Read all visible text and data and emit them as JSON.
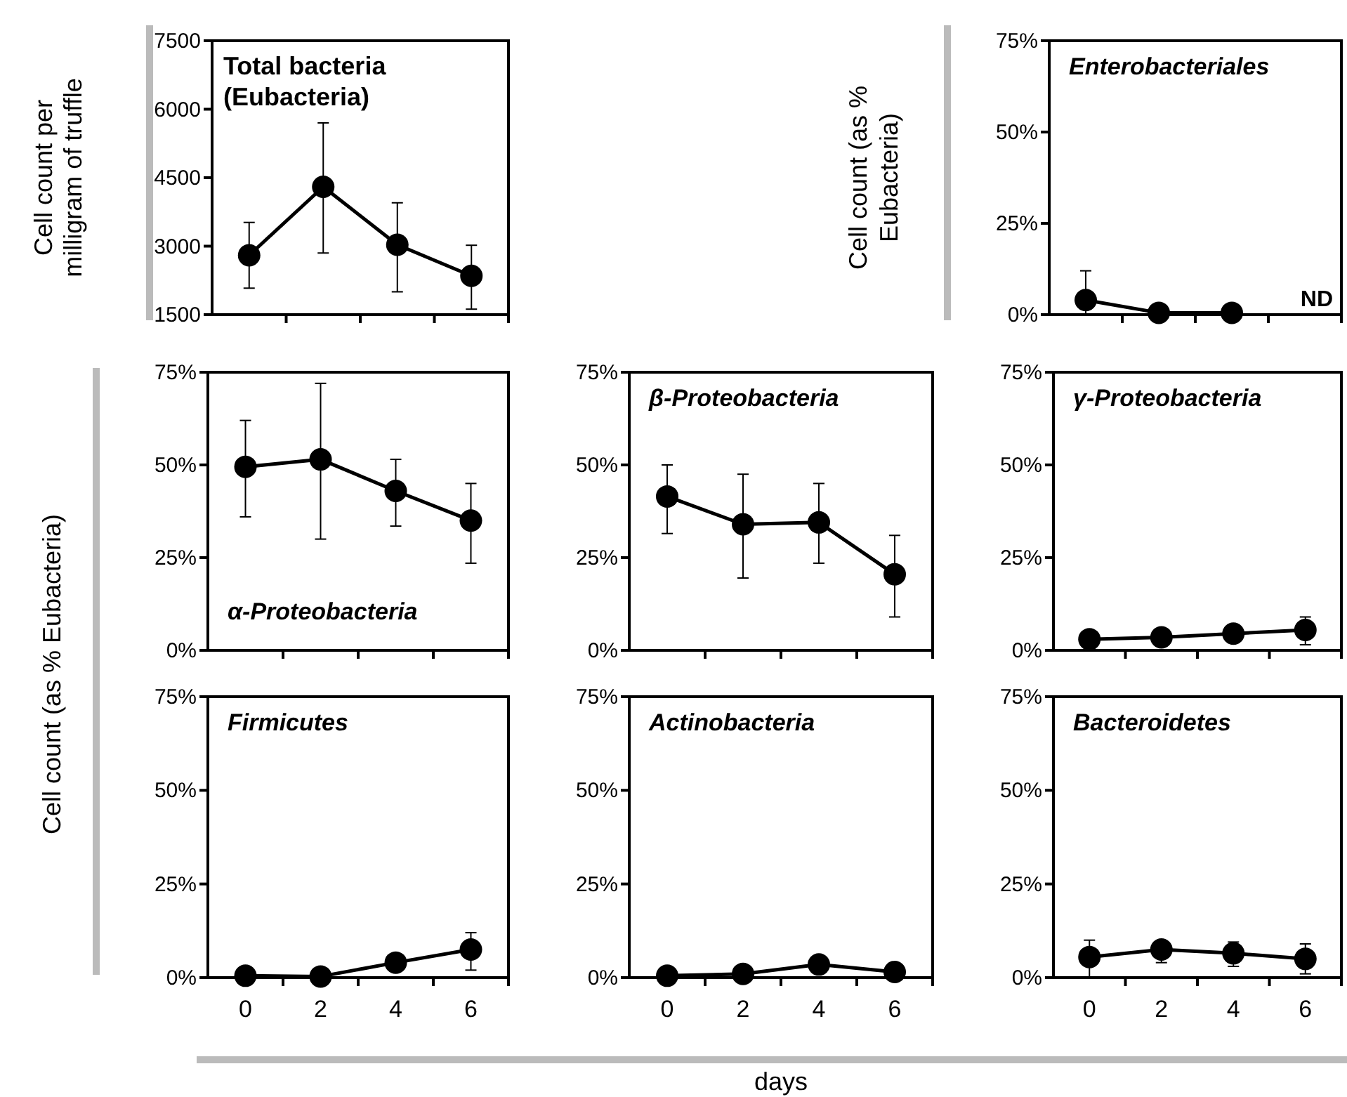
{
  "chart_data": [
    {
      "type": "line",
      "title": "Total bacteria\n(Eubacteria)",
      "ylabel": "Cell count per\nmilligram of truffle",
      "categories": [
        "0",
        "2",
        "4",
        "6"
      ],
      "series": [
        {
          "color": "#000000",
          "values": [
            2800,
            4300,
            3030,
            2350
          ],
          "errors": [
            [
              2080,
              3520
            ],
            [
              2850,
              5700
            ],
            [
              2000,
              3950
            ],
            [
              1620,
              3020
            ]
          ]
        }
      ],
      "ylim": [
        1500,
        7500
      ],
      "yticks": [
        1500,
        3000,
        4500,
        6000,
        7500
      ],
      "tick_labels": "y",
      "marker": "circle",
      "line_style": "solid",
      "grid": false
    },
    {
      "type": "line",
      "title": "Enterobacteriales",
      "ylabel": "Cell count (as %\nEubacteria)",
      "categories": [
        "0",
        "2",
        "4",
        "6"
      ],
      "series": [
        {
          "color": "#000000",
          "values": [
            4,
            0.5,
            0.5,
            null
          ],
          "errors": [
            [
              0,
              12
            ],
            null,
            null,
            null
          ]
        }
      ],
      "annotations": [
        "ND"
      ],
      "ylim": [
        0,
        75
      ],
      "yticks": [
        {
          "value": 0,
          "label": "0%"
        },
        {
          "value": 25,
          "label": "25%"
        },
        {
          "value": 50,
          "label": "50%"
        },
        {
          "value": 75,
          "label": "75%"
        }
      ],
      "tick_labels": "y",
      "marker": "circle",
      "line_style": "solid",
      "grid": false
    },
    {
      "type": "line",
      "title": "α-Proteobacteria",
      "ylabel": "Cell count (as % Eubacteria)",
      "categories": [
        "0",
        "2",
        "4",
        "6"
      ],
      "series": [
        {
          "color": "#000000",
          "values": [
            49.5,
            51.5,
            43,
            35
          ],
          "errors": [
            [
              36,
              62
            ],
            [
              30,
              72
            ],
            [
              33.5,
              51.5
            ],
            [
              23.5,
              45
            ]
          ]
        }
      ],
      "ylim": [
        0,
        75
      ],
      "yticks": [
        {
          "value": 0,
          "label": "0%"
        },
        {
          "value": 25,
          "label": "25%"
        },
        {
          "value": 50,
          "label": "50%"
        },
        {
          "value": 75,
          "label": "75%"
        }
      ],
      "tick_labels": "y",
      "marker": "circle",
      "line_style": "solid",
      "grid": false
    },
    {
      "type": "line",
      "title": "β-Proteobacteria",
      "categories": [
        "0",
        "2",
        "4",
        "6"
      ],
      "series": [
        {
          "color": "#000000",
          "values": [
            41.5,
            34,
            34.5,
            20.5
          ],
          "errors": [
            [
              31.5,
              50
            ],
            [
              19.5,
              47.5
            ],
            [
              23.5,
              45
            ],
            [
              9,
              31
            ]
          ]
        }
      ],
      "ylim": [
        0,
        75
      ],
      "yticks": [
        {
          "value": 0,
          "label": "0%"
        },
        {
          "value": 25,
          "label": "25%"
        },
        {
          "value": 50,
          "label": "50%"
        },
        {
          "value": 75,
          "label": "75%"
        }
      ],
      "tick_labels": "y",
      "marker": "circle",
      "line_style": "solid",
      "grid": false
    },
    {
      "type": "line",
      "title": "γ-Proteobacteria",
      "categories": [
        "0",
        "2",
        "4",
        "6"
      ],
      "series": [
        {
          "color": "#000000",
          "values": [
            3,
            3.5,
            4.5,
            5.5
          ],
          "errors": [
            null,
            null,
            [
              3,
              7
            ],
            [
              1.5,
              9
            ]
          ]
        }
      ],
      "ylim": [
        0,
        75
      ],
      "yticks": [
        {
          "value": 0,
          "label": "0%"
        },
        {
          "value": 25,
          "label": "25%"
        },
        {
          "value": 50,
          "label": "50%"
        },
        {
          "value": 75,
          "label": "75%"
        }
      ],
      "tick_labels": "y",
      "marker": "circle",
      "line_style": "solid",
      "grid": false
    },
    {
      "type": "line",
      "title": "Firmicutes",
      "categories": [
        "0",
        "2",
        "4",
        "6"
      ],
      "series": [
        {
          "color": "#000000",
          "values": [
            0.5,
            0.3,
            4,
            7.5
          ],
          "errors": [
            null,
            null,
            [
              2,
              6
            ],
            [
              2,
              12
            ]
          ]
        }
      ],
      "ylim": [
        0,
        75
      ],
      "yticks": [
        {
          "value": 0,
          "label": "0%"
        },
        {
          "value": 25,
          "label": "25%"
        },
        {
          "value": 50,
          "label": "50%"
        },
        {
          "value": 75,
          "label": "75%"
        }
      ],
      "marker": "circle",
      "line_style": "solid",
      "grid": false
    },
    {
      "type": "line",
      "title": "Actinobacteria",
      "xlabel": "days",
      "categories": [
        "0",
        "2",
        "4",
        "6"
      ],
      "series": [
        {
          "color": "#000000",
          "values": [
            0.5,
            1,
            3.5,
            1.5
          ],
          "errors": [
            null,
            null,
            [
              1.5,
              5.5
            ],
            null
          ]
        }
      ],
      "ylim": [
        0,
        75
      ],
      "yticks": [
        {
          "value": 0,
          "label": "0%"
        },
        {
          "value": 25,
          "label": "25%"
        },
        {
          "value": 50,
          "label": "50%"
        },
        {
          "value": 75,
          "label": "75%"
        }
      ],
      "marker": "circle",
      "line_style": "solid",
      "grid": false
    },
    {
      "type": "line",
      "title": "Bacteroidetes",
      "categories": [
        "0",
        "2",
        "4",
        "6"
      ],
      "series": [
        {
          "color": "#000000",
          "values": [
            5.5,
            7.5,
            6.5,
            5
          ],
          "errors": [
            [
              0,
              10
            ],
            [
              4,
              9.5
            ],
            [
              3,
              9.5
            ],
            [
              1,
              9
            ]
          ]
        }
      ],
      "ylim": [
        0,
        75
      ],
      "yticks": [
        {
          "value": 0,
          "label": "0%"
        },
        {
          "value": 25,
          "label": "25%"
        },
        {
          "value": 50,
          "label": "50%"
        },
        {
          "value": 75,
          "label": "75%"
        }
      ],
      "marker": "circle",
      "line_style": "solid",
      "grid": false
    }
  ]
}
